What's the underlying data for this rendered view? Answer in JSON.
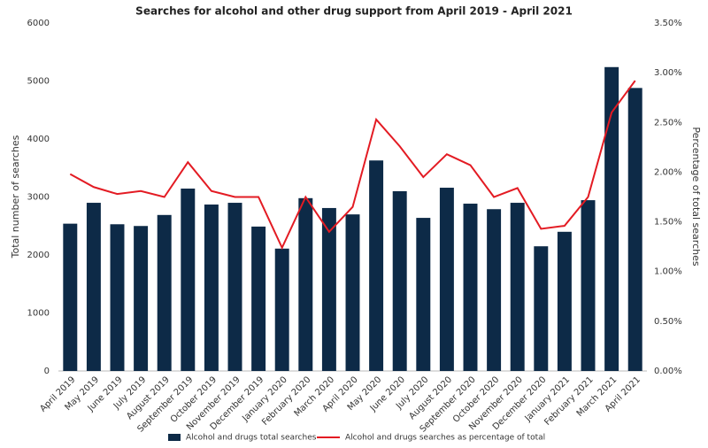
{
  "chart_data": {
    "type": "bar-line",
    "title": "Searches for alcohol and other drug support from April 2019 - April 2021",
    "y_label": "Total number of searches",
    "y2_label": "Percentage of total searches",
    "categories": [
      "April 2019",
      "May 2019",
      "June 2019",
      "July 2019",
      "August 2019",
      "September 2019",
      "October 2019",
      "November 2019",
      "December 2019",
      "January 2020",
      "February 2020",
      "March 2020",
      "April 2020",
      "May 2020",
      "June 2020",
      "July 2020",
      "August 2020",
      "September 2020",
      "October 2020",
      "November 2020",
      "December 2020",
      "January 2021",
      "February 2021",
      "March 2021",
      "April 2021"
    ],
    "series": [
      {
        "name": "Alcohol and drugs total searches",
        "type": "bar",
        "color": "#0d2a47",
        "values": [
          2540,
          2900,
          2530,
          2500,
          2690,
          3145,
          2870,
          2900,
          2490,
          2110,
          2980,
          2810,
          2700,
          3630,
          3100,
          2640,
          3160,
          2885,
          2790,
          2900,
          2150,
          2400,
          2945,
          5240,
          4880
        ]
      },
      {
        "name": "Alcohol and drugs searches as percentage of total",
        "type": "line",
        "axis": "y2",
        "color": "#e31b23",
        "values": [
          1.98,
          1.85,
          1.78,
          1.81,
          1.75,
          2.1,
          1.81,
          1.75,
          1.75,
          1.24,
          1.75,
          1.4,
          1.65,
          2.53,
          2.26,
          1.95,
          2.18,
          2.07,
          1.75,
          1.84,
          1.43,
          1.46,
          1.75,
          2.6,
          2.92
        ]
      }
    ],
    "ylim": [
      0,
      6000
    ],
    "yticks": [
      0,
      1000,
      2000,
      3000,
      4000,
      5000,
      6000
    ],
    "y2lim": [
      0,
      3.5
    ],
    "y2ticks": [
      {
        "value": 0,
        "label": "0.00%"
      },
      {
        "value": 0.5,
        "label": "0.50%"
      },
      {
        "value": 1,
        "label": "1.00%"
      },
      {
        "value": 1.5,
        "label": "1.50%"
      },
      {
        "value": 2,
        "label": "2.00%"
      },
      {
        "value": 2.5,
        "label": "2.50%"
      },
      {
        "value": 3,
        "label": "3.00%"
      },
      {
        "value": 3.5,
        "label": "3.50%"
      }
    ],
    "grid": false
  }
}
